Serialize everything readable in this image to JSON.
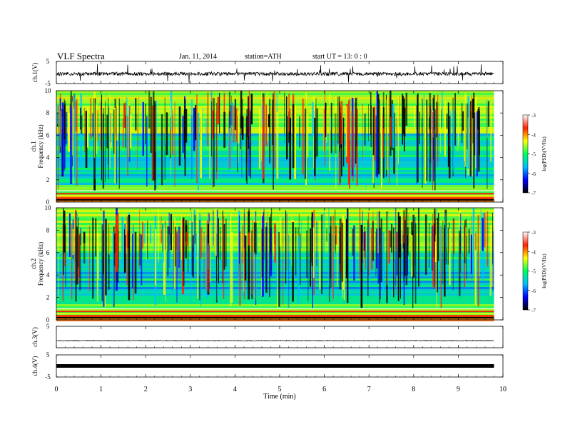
{
  "header": {
    "title": "VLF  Spectra",
    "date": "Jan. 11, 2014",
    "station": "station=ATH",
    "start": "start  UT  =   13: 0  : 0"
  },
  "chart_data": {
    "type": "heatmap",
    "xlabel": "Time  (min)",
    "xlim": [
      0,
      10
    ],
    "xticks": [
      "0",
      "1",
      "2",
      "3",
      "4",
      "5",
      "6",
      "7",
      "8",
      "9",
      "10"
    ],
    "data_end_min": 9.8,
    "panels": [
      {
        "id": "ch1_wave",
        "ylabel": "ch.1(V)",
        "yticks": [
          "5",
          "-5"
        ],
        "ylim": [
          -5,
          5
        ],
        "kind": "waveform"
      },
      {
        "id": "ch1_spec",
        "ylabel": "ch.1",
        "ylabel2": "Frequency  (kHz)",
        "yticks": [
          "10",
          "8",
          "6",
          "4",
          "2",
          "0"
        ],
        "ylim": [
          0,
          10
        ],
        "kind": "spectrogram"
      },
      {
        "id": "ch2_spec",
        "ylabel": "ch.2",
        "ylabel2": "Frequency  (kHz)",
        "yticks": [
          "10",
          "8",
          "6",
          "4",
          "2",
          "0"
        ],
        "ylim": [
          0,
          10
        ],
        "kind": "spectrogram"
      },
      {
        "id": "ch3_wave",
        "ylabel": "ch.3(V)",
        "yticks": [
          "5"
        ],
        "ylim": [
          -5,
          5
        ],
        "kind": "waveform"
      },
      {
        "id": "ch4_wave",
        "ylabel": "ch.4(V)",
        "yticks": [
          "5",
          "-5"
        ],
        "ylim": [
          -5,
          5
        ],
        "kind": "waveform"
      }
    ],
    "colorbar": {
      "label": "log(PSD)(V²/Hz)",
      "ticks": [
        "-3",
        "-4",
        "-5",
        "-6",
        "-7"
      ],
      "range": [
        -7,
        -3
      ],
      "colors": [
        "#000000",
        "#0000ff",
        "#00c0ff",
        "#00ff60",
        "#ffff00",
        "#ff2000",
        "#ffffff"
      ]
    }
  }
}
